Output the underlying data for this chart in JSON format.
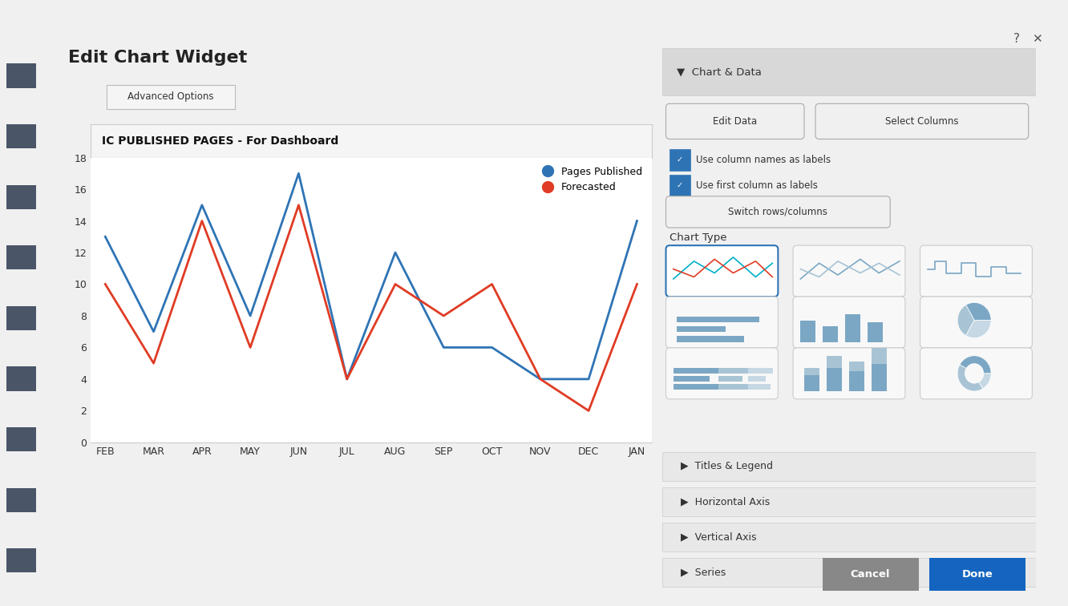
{
  "title": "IC PUBLISHED PAGES - For Dashboard",
  "x_labels": [
    "FEB",
    "MAR",
    "APR",
    "MAY",
    "JUN",
    "JUL",
    "AUG",
    "SEP",
    "OCT",
    "NOV",
    "DEC",
    "JAN"
  ],
  "pages_published": [
    13,
    7,
    15,
    8,
    17,
    4,
    12,
    6,
    6,
    4,
    4,
    14
  ],
  "forecasted": [
    10,
    5,
    14,
    6,
    15,
    4,
    10,
    8,
    10,
    4,
    2,
    10
  ],
  "blue_color": "#2E74B5",
  "red_color": "#E03B24",
  "y_min": 0,
  "y_max": 18,
  "y_ticks": [
    0,
    2,
    4,
    6,
    8,
    10,
    12,
    14,
    16,
    18
  ],
  "legend_pages": "Pages Published",
  "legend_forecast": "Forecasted",
  "bg_color": "#FFFFFF",
  "chart_bg": "#FFFFFF",
  "outer_bg": "#F0F0F0",
  "panel_bg": "#FFFFFF",
  "title_bar_bg": "#F5F5F5",
  "sidebar_bg": "#F0F0F0",
  "header_bg": "#E8E8E8"
}
